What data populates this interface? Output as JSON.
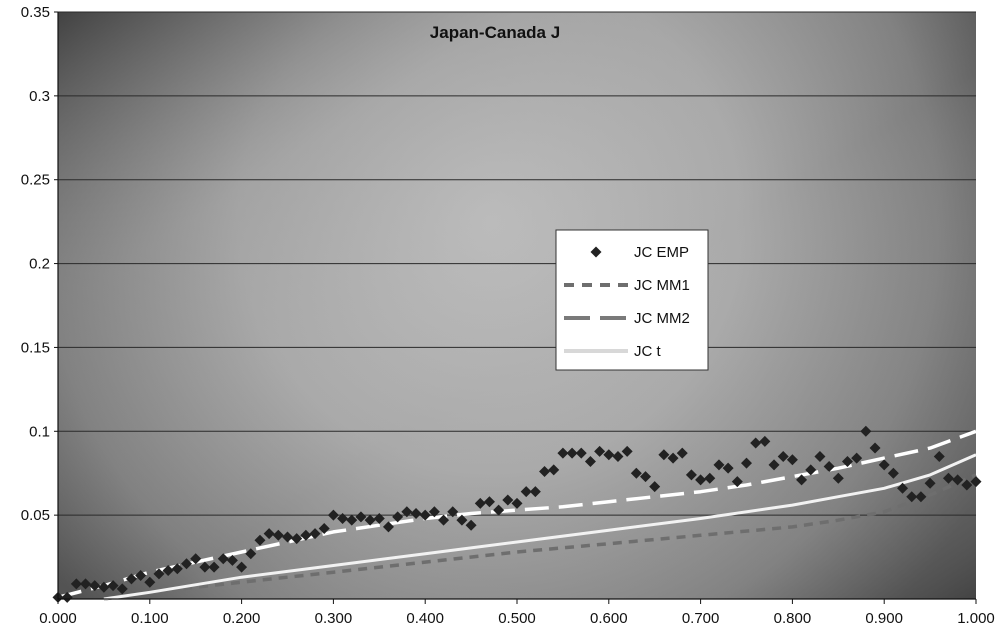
{
  "chart_data": {
    "type": "scatter",
    "title": "Japan-Canada J",
    "xlabel": "",
    "ylabel": "",
    "xlim": [
      0,
      1
    ],
    "ylim": [
      0,
      0.35
    ],
    "x_ticks": [
      "0.000",
      "0.100",
      "0.200",
      "0.300",
      "0.400",
      "0.500",
      "0.600",
      "0.700",
      "0.800",
      "0.900",
      "1.000"
    ],
    "y_ticks": [
      "0.05",
      "0.1",
      "0.15",
      "0.2",
      "0.25",
      "0.3",
      "0.35"
    ],
    "grid": "horizontal",
    "legend_position": "center-right",
    "series": [
      {
        "name": "JC EMP",
        "kind": "markers",
        "marker": "diamond",
        "color": "#222222",
        "x": [
          0.0,
          0.01,
          0.02,
          0.03,
          0.04,
          0.05,
          0.06,
          0.07,
          0.08,
          0.09,
          0.1,
          0.11,
          0.12,
          0.13,
          0.14,
          0.15,
          0.16,
          0.17,
          0.18,
          0.19,
          0.2,
          0.21,
          0.22,
          0.23,
          0.24,
          0.25,
          0.26,
          0.27,
          0.28,
          0.29,
          0.3,
          0.31,
          0.32,
          0.33,
          0.34,
          0.35,
          0.36,
          0.37,
          0.38,
          0.39,
          0.4,
          0.41,
          0.42,
          0.43,
          0.44,
          0.45,
          0.46,
          0.47,
          0.48,
          0.49,
          0.5,
          0.51,
          0.52,
          0.53,
          0.54,
          0.55,
          0.56,
          0.57,
          0.58,
          0.59,
          0.6,
          0.61,
          0.62,
          0.63,
          0.64,
          0.65,
          0.66,
          0.67,
          0.68,
          0.69,
          0.7,
          0.71,
          0.72,
          0.73,
          0.74,
          0.75,
          0.76,
          0.77,
          0.78,
          0.79,
          0.8,
          0.81,
          0.82,
          0.83,
          0.84,
          0.85,
          0.86,
          0.87,
          0.88,
          0.89,
          0.9,
          0.91,
          0.92,
          0.93,
          0.94,
          0.95,
          0.96,
          0.97,
          0.98,
          0.99,
          1.0
        ],
        "y": [
          0.001,
          0.001,
          0.009,
          0.009,
          0.008,
          0.007,
          0.008,
          0.006,
          0.012,
          0.014,
          0.01,
          0.015,
          0.017,
          0.018,
          0.021,
          0.024,
          0.019,
          0.019,
          0.024,
          0.023,
          0.019,
          0.027,
          0.035,
          0.039,
          0.038,
          0.037,
          0.036,
          0.038,
          0.039,
          0.042,
          0.05,
          0.048,
          0.047,
          0.049,
          0.047,
          0.048,
          0.043,
          0.049,
          0.052,
          0.051,
          0.05,
          0.052,
          0.047,
          0.052,
          0.047,
          0.044,
          0.057,
          0.058,
          0.053,
          0.059,
          0.057,
          0.064,
          0.064,
          0.076,
          0.077,
          0.087,
          0.087,
          0.087,
          0.082,
          0.088,
          0.086,
          0.085,
          0.088,
          0.075,
          0.073,
          0.067,
          0.086,
          0.084,
          0.087,
          0.074,
          0.071,
          0.072,
          0.08,
          0.078,
          0.07,
          0.081,
          0.093,
          0.094,
          0.08,
          0.085,
          0.083,
          0.071,
          0.077,
          0.085,
          0.079,
          0.072,
          0.082,
          0.084,
          0.1,
          0.09,
          0.08,
          0.075,
          0.066,
          0.061,
          0.061,
          0.069,
          0.085,
          0.072,
          0.071,
          0.068,
          0.07
        ]
      },
      {
        "name": "JC MM1",
        "kind": "line",
        "dash": "short",
        "color": "#6e6e6e",
        "x": [
          0.05,
          0.1,
          0.2,
          0.3,
          0.4,
          0.5,
          0.6,
          0.7,
          0.8,
          0.85,
          0.9,
          0.95,
          1.0
        ],
        "y": [
          0.0,
          0.004,
          0.01,
          0.016,
          0.022,
          0.028,
          0.033,
          0.038,
          0.043,
          0.047,
          0.052,
          0.062,
          0.074
        ]
      },
      {
        "name": "JC MM2",
        "kind": "line",
        "dash": "long",
        "color": "#ffffff",
        "x": [
          0.0,
          0.05,
          0.1,
          0.15,
          0.2,
          0.25,
          0.3,
          0.35,
          0.4,
          0.45,
          0.5,
          0.55,
          0.6,
          0.65,
          0.7,
          0.75,
          0.8,
          0.85,
          0.9,
          0.95,
          1.0
        ],
        "y": [
          0.001,
          0.008,
          0.016,
          0.022,
          0.028,
          0.034,
          0.04,
          0.044,
          0.048,
          0.051,
          0.053,
          0.055,
          0.058,
          0.061,
          0.064,
          0.068,
          0.073,
          0.078,
          0.084,
          0.09,
          0.1
        ]
      },
      {
        "name": "JC t",
        "kind": "line",
        "dash": "solid",
        "color": "#f2f2f2",
        "x": [
          0.05,
          0.1,
          0.2,
          0.3,
          0.4,
          0.5,
          0.6,
          0.7,
          0.8,
          0.85,
          0.9,
          0.95,
          1.0
        ],
        "y": [
          0.0,
          0.004,
          0.013,
          0.02,
          0.027,
          0.034,
          0.041,
          0.048,
          0.056,
          0.061,
          0.066,
          0.074,
          0.086
        ]
      }
    ]
  }
}
